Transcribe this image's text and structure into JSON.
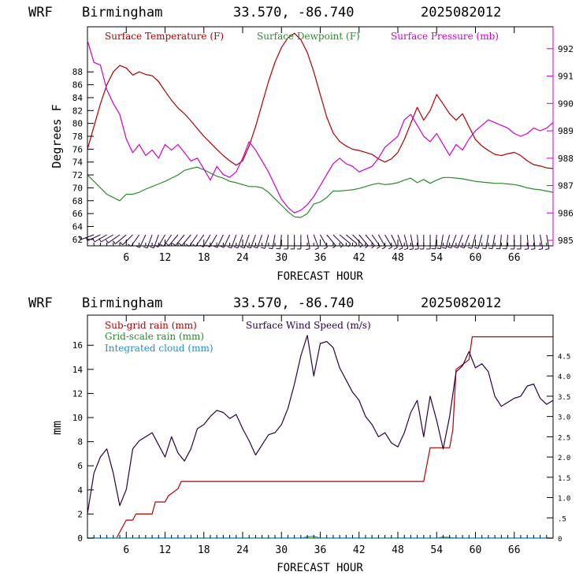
{
  "header": {
    "model": "WRF",
    "station": "Birmingham",
    "coords": "33.570, -86.740",
    "init": "2025082012"
  },
  "colors": {
    "temperature": "#b00000",
    "dewpoint": "#2a8a2a",
    "pressure": "#cc00cc",
    "subgrid_rain": "#b00000",
    "gridscale_rain": "#2a8a2a",
    "cloud": "#2090d0",
    "wind": "#2a0040",
    "wind_barbs": "#2a0040"
  },
  "chart_data": [
    {
      "type": "line",
      "xlabel": "FORECAST HOUR",
      "ylabel": "Degrees F",
      "xlim": [
        0,
        72
      ],
      "ylim": [
        61,
        95
      ],
      "y2lim": [
        984.8,
        992.8
      ],
      "x_ticks": [
        "6",
        "12",
        "18",
        "24",
        "30",
        "36",
        "42",
        "48",
        "54",
        "60",
        "66"
      ],
      "y_ticks": [
        "62",
        "64",
        "66",
        "68",
        "70",
        "72",
        "74",
        "76",
        "78",
        "80",
        "82",
        "84",
        "86",
        "88"
      ],
      "y2_ticks": [
        "985",
        "986",
        "987",
        "988",
        "989",
        "990",
        "991",
        "992"
      ],
      "legend": [
        "Surface Temperature (F)",
        "Surface Dewpoint (F)",
        "Surface Pressure (mb)"
      ],
      "series": [
        {
          "name": "Surface Temperature (F)",
          "axis": "left",
          "x": [
            0,
            1,
            2,
            3,
            4,
            5,
            6,
            7,
            8,
            9,
            10,
            11,
            12,
            13,
            14,
            15,
            16,
            17,
            18,
            19,
            20,
            21,
            22,
            23,
            24,
            25,
            26,
            27,
            28,
            29,
            30,
            31,
            32,
            33,
            34,
            35,
            36,
            37,
            38,
            39,
            40,
            41,
            42,
            43,
            44,
            45,
            46,
            47,
            48,
            49,
            50,
            51,
            52,
            53,
            54,
            55,
            56,
            57,
            58,
            59,
            60,
            61,
            62,
            63,
            64,
            65,
            66,
            67,
            68,
            69,
            70,
            71,
            72
          ],
          "values": [
            76.0,
            79.5,
            83.0,
            86.0,
            88.0,
            89.0,
            88.6,
            87.5,
            88.0,
            87.6,
            87.4,
            86.5,
            85.0,
            83.6,
            82.4,
            81.5,
            80.4,
            79.2,
            78.0,
            77.0,
            76.0,
            75.0,
            74.2,
            73.5,
            74.2,
            76.5,
            79.5,
            83.0,
            86.5,
            89.5,
            91.8,
            93.3,
            94.0,
            93.0,
            91.0,
            88.0,
            84.5,
            81.0,
            78.5,
            77.2,
            76.5,
            76.0,
            75.8,
            75.5,
            75.2,
            74.5,
            74.0,
            74.5,
            75.5,
            77.5,
            80.0,
            82.5,
            80.5,
            82.0,
            84.5,
            83.0,
            81.5,
            80.5,
            81.5,
            79.5,
            77.5,
            76.5,
            75.8,
            75.2,
            75.0,
            75.3,
            75.5,
            75.0,
            74.2,
            73.6,
            73.4,
            73.1,
            73.0
          ]
        },
        {
          "name": "Surface Dewpoint (F)",
          "axis": "left",
          "x": [
            0,
            1,
            2,
            3,
            4,
            5,
            6,
            7,
            8,
            9,
            10,
            11,
            12,
            13,
            14,
            15,
            16,
            17,
            18,
            19,
            20,
            21,
            22,
            23,
            24,
            25,
            26,
            27,
            28,
            29,
            30,
            31,
            32,
            33,
            34,
            35,
            36,
            37,
            38,
            39,
            40,
            41,
            42,
            43,
            44,
            45,
            46,
            47,
            48,
            49,
            50,
            51,
            52,
            53,
            54,
            55,
            56,
            57,
            58,
            59,
            60,
            61,
            62,
            63,
            64,
            65,
            66,
            67,
            68,
            69,
            70,
            71,
            72
          ],
          "values": [
            72.0,
            71.0,
            70.0,
            69.0,
            68.5,
            68.0,
            69.0,
            69.0,
            69.3,
            69.8,
            70.2,
            70.6,
            71.0,
            71.5,
            72.0,
            72.7,
            73.0,
            73.2,
            72.8,
            72.3,
            71.8,
            71.5,
            71.0,
            70.8,
            70.5,
            70.2,
            70.2,
            70.0,
            69.3,
            68.3,
            67.3,
            66.3,
            65.5,
            65.4,
            66.0,
            67.5,
            67.8,
            68.5,
            69.5,
            69.5,
            69.6,
            69.7,
            69.9,
            70.2,
            70.5,
            70.7,
            70.5,
            70.6,
            70.8,
            71.2,
            71.5,
            70.8,
            71.3,
            70.7,
            71.2,
            71.6,
            71.6,
            71.5,
            71.4,
            71.2,
            71.0,
            70.9,
            70.8,
            70.7,
            70.7,
            70.6,
            70.5,
            70.3,
            70.0,
            69.8,
            69.7,
            69.5,
            69.3
          ]
        },
        {
          "name": "Surface Pressure (mb)",
          "axis": "right",
          "x": [
            0,
            1,
            2,
            3,
            4,
            5,
            6,
            7,
            8,
            9,
            10,
            11,
            12,
            13,
            14,
            15,
            16,
            17,
            18,
            19,
            20,
            21,
            22,
            23,
            24,
            25,
            26,
            27,
            28,
            29,
            30,
            31,
            32,
            33,
            34,
            35,
            36,
            37,
            38,
            39,
            40,
            41,
            42,
            43,
            44,
            45,
            46,
            47,
            48,
            49,
            50,
            51,
            52,
            53,
            54,
            55,
            56,
            57,
            58,
            59,
            60,
            61,
            62,
            63,
            64,
            65,
            66,
            67,
            68,
            69,
            70,
            71,
            72
          ],
          "values": [
            992.3,
            991.5,
            991.4,
            990.5,
            990.0,
            989.6,
            988.7,
            988.2,
            988.5,
            988.1,
            988.3,
            988.0,
            988.5,
            988.3,
            988.5,
            988.2,
            987.9,
            988.0,
            987.6,
            987.2,
            987.7,
            987.4,
            987.3,
            987.5,
            988.0,
            988.6,
            988.3,
            987.9,
            987.5,
            987.0,
            986.5,
            986.2,
            986.0,
            986.1,
            986.3,
            986.6,
            987.0,
            987.4,
            987.8,
            988.0,
            987.8,
            987.7,
            987.5,
            987.6,
            987.7,
            988.0,
            988.4,
            988.6,
            988.8,
            989.4,
            989.6,
            989.2,
            988.8,
            988.6,
            988.9,
            988.5,
            988.1,
            988.5,
            988.3,
            988.7,
            989.0,
            989.2,
            989.4,
            989.3,
            989.2,
            989.1,
            988.9,
            988.8,
            988.9,
            989.1,
            989.0,
            989.1,
            989.3
          ]
        }
      ],
      "wind_barbs_hours": [
        1,
        2,
        3,
        4,
        5,
        6,
        7,
        8,
        9,
        10,
        11,
        12,
        13,
        14,
        15,
        16,
        17,
        18,
        19,
        20,
        21,
        22,
        23,
        24,
        25,
        26,
        27,
        28,
        29,
        30,
        31,
        32,
        33,
        34,
        35,
        36,
        37,
        38,
        39,
        40,
        41,
        42,
        43,
        44,
        45,
        46,
        47,
        48,
        49,
        50,
        51,
        52,
        53,
        54,
        55,
        56,
        57,
        58,
        59,
        60,
        61,
        62,
        63,
        64,
        65,
        66,
        67,
        68,
        69,
        70,
        71
      ],
      "wind_barbs_dir": [
        250,
        245,
        240,
        240,
        235,
        230,
        225,
        215,
        205,
        200,
        200,
        210,
        215,
        220,
        220,
        220,
        215,
        215,
        210,
        210,
        205,
        205,
        200,
        200,
        200,
        200,
        200,
        195,
        190,
        185,
        180,
        180,
        180,
        170,
        160,
        150,
        140,
        135,
        130,
        130,
        135,
        140,
        140,
        145,
        150,
        150,
        155,
        160,
        165,
        170,
        175,
        180,
        180,
        185,
        190,
        195,
        200,
        200,
        200,
        195,
        195,
        190,
        190,
        185,
        185,
        180,
        180,
        175,
        175,
        170,
        170
      ]
    },
    {
      "type": "line",
      "xlabel": "FORECAST HOUR",
      "ylabel": "mm",
      "xlim": [
        0,
        72
      ],
      "ylim": [
        0,
        18.5
      ],
      "y2lim": [
        0,
        5.5
      ],
      "x_ticks": [
        "6",
        "12",
        "18",
        "24",
        "30",
        "36",
        "42",
        "48",
        "54",
        "60",
        "66"
      ],
      "y_ticks": [
        "0",
        "2",
        "4",
        "6",
        "8",
        "10",
        "12",
        "14",
        "16"
      ],
      "y2_ticks": [
        "0",
        ".5",
        "1.0",
        "1.5",
        "2.0",
        "2.5",
        "3.0",
        "3.5",
        "4.0",
        "4.5"
      ],
      "legend": [
        "Sub-grid rain (mm)",
        "Grid-scale rain (mm)",
        "Integrated cloud (mm)",
        "Surface Wind Speed (m/s)"
      ],
      "series": [
        {
          "name": "Sub-grid rain (mm)",
          "axis": "left",
          "x": [
            4.5,
            6,
            7,
            7.5,
            10,
            10.5,
            12,
            12.5,
            14,
            14.5,
            52,
            53,
            56,
            56.5,
            57,
            59,
            59.5,
            72
          ],
          "values": [
            0,
            1.5,
            1.5,
            2.0,
            2.0,
            3.0,
            3.0,
            3.5,
            4.1,
            4.7,
            4.7,
            7.5,
            7.5,
            9.0,
            14.0,
            14.8,
            16.7,
            16.7
          ]
        },
        {
          "name": "Grid-scale rain (mm)",
          "axis": "left",
          "x": [
            0,
            72
          ],
          "values": [
            0,
            0
          ]
        },
        {
          "name": "Integrated cloud (mm)",
          "axis": "left",
          "x": [
            0,
            33,
            34,
            35,
            36,
            54,
            55,
            56,
            57,
            72
          ],
          "values": [
            0,
            0,
            0.1,
            0.15,
            0,
            0,
            0.1,
            0.05,
            0,
            0
          ]
        },
        {
          "name": "Surface Wind Speed (m/s)",
          "axis": "right",
          "x": [
            0,
            1,
            2,
            3,
            4,
            5,
            6,
            7,
            8,
            9,
            10,
            11,
            12,
            13,
            14,
            15,
            16,
            17,
            18,
            19,
            20,
            21,
            22,
            23,
            24,
            25,
            26,
            27,
            28,
            29,
            30,
            31,
            32,
            33,
            34,
            35,
            36,
            37,
            38,
            39,
            40,
            41,
            42,
            43,
            44,
            45,
            46,
            47,
            48,
            49,
            50,
            51,
            52,
            53,
            54,
            55,
            56,
            57,
            58,
            59,
            60,
            61,
            62,
            63,
            64,
            65,
            66,
            67,
            68,
            69,
            70,
            71,
            72
          ],
          "values": [
            0.6,
            1.6,
            2.0,
            2.2,
            1.6,
            0.8,
            1.2,
            2.2,
            2.4,
            2.5,
            2.6,
            2.3,
            2.0,
            2.5,
            2.1,
            1.9,
            2.2,
            2.7,
            2.8,
            3.0,
            3.15,
            3.1,
            2.95,
            3.05,
            2.7,
            2.4,
            2.05,
            2.3,
            2.55,
            2.6,
            2.8,
            3.2,
            3.8,
            4.5,
            5.0,
            4.0,
            4.8,
            4.85,
            4.7,
            4.2,
            3.9,
            3.6,
            3.4,
            3.0,
            2.8,
            2.5,
            2.6,
            2.35,
            2.25,
            2.6,
            3.1,
            3.4,
            2.5,
            3.5,
            2.9,
            2.2,
            3.0,
            4.1,
            4.25,
            4.6,
            4.2,
            4.3,
            4.1,
            3.5,
            3.25,
            3.35,
            3.45,
            3.5,
            3.75,
            3.8,
            3.45,
            3.3,
            3.4
          ]
        }
      ]
    }
  ]
}
